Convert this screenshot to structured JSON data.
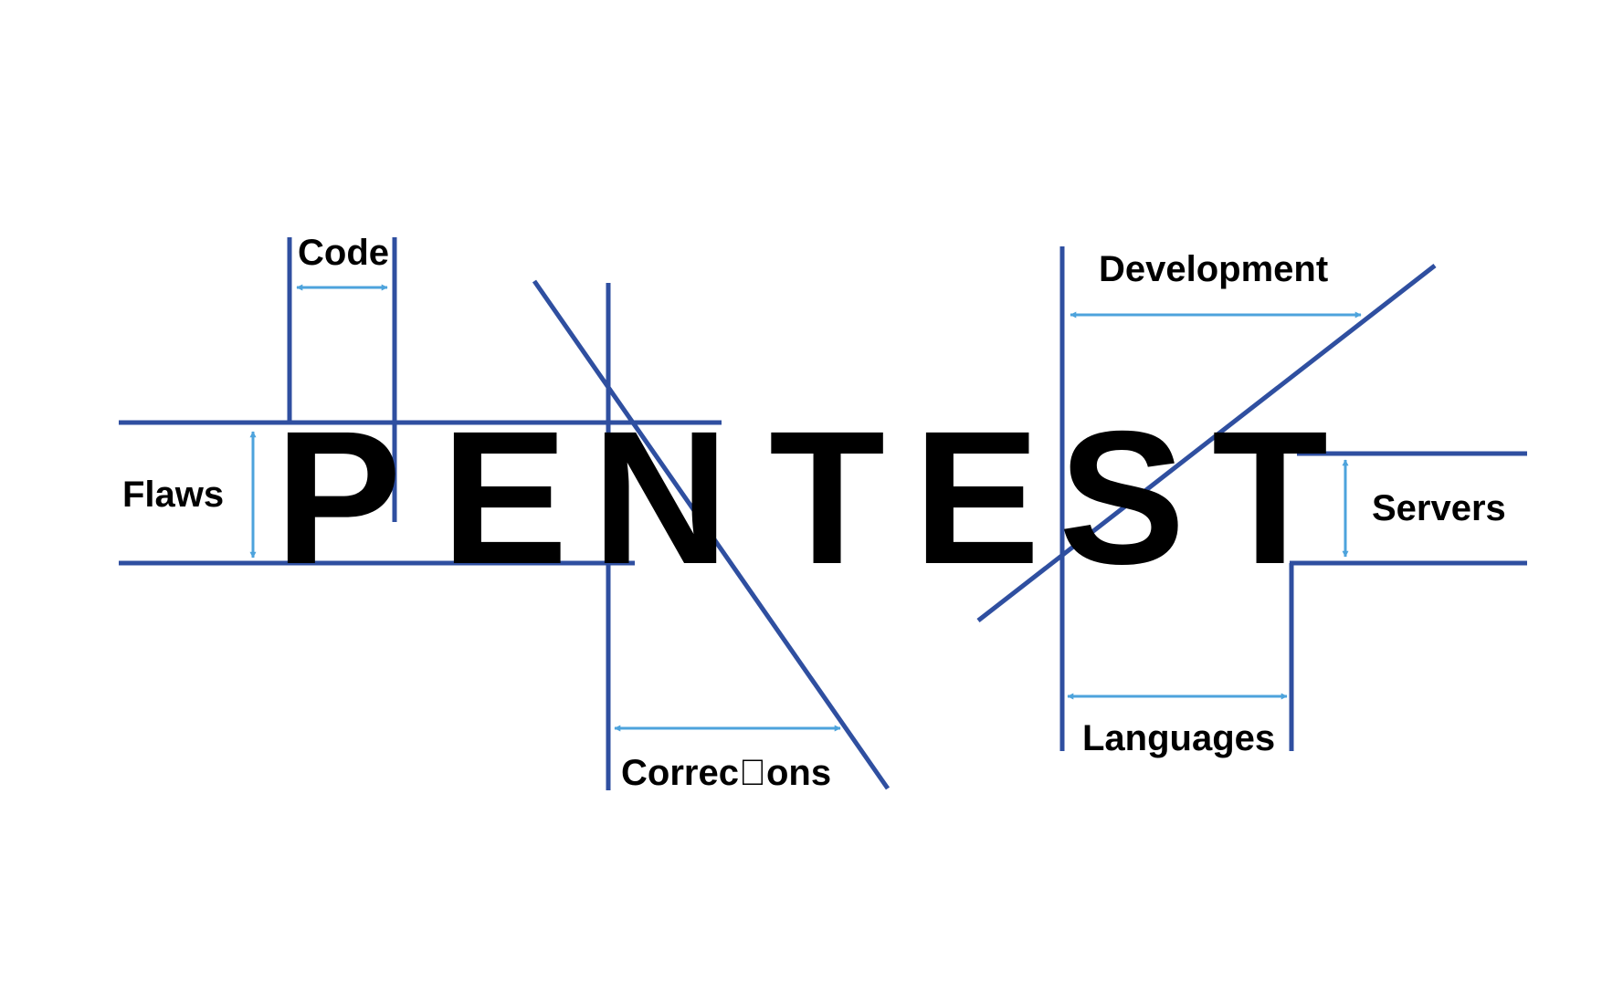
{
  "word": {
    "letters": [
      "P",
      "E",
      "N",
      "T",
      "E",
      "S",
      "T"
    ]
  },
  "labels": {
    "code": "Code",
    "flaws": "Flaws",
    "corrections": "Correc\u0000ons",
    "development": "Development",
    "servers": "Servers",
    "languages": "Languages"
  },
  "colors": {
    "guide_line": "#2f4fa0",
    "dimension_arrow": "#4da3dc",
    "text": "#000000",
    "background": "#ffffff"
  }
}
